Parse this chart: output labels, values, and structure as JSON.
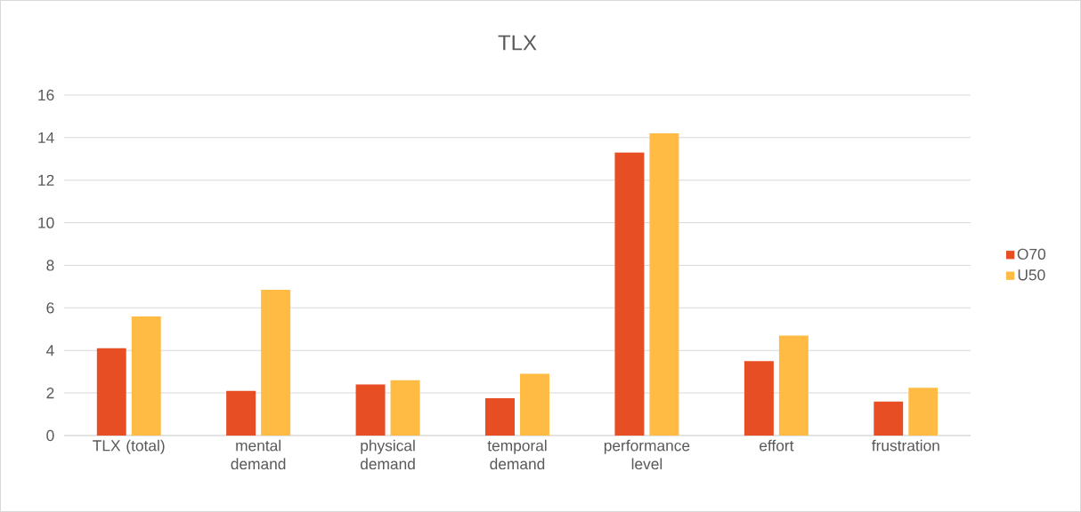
{
  "chart_data": {
    "type": "bar",
    "title": "TLX",
    "categories": [
      "TLX (total)",
      "mental demand",
      "physical demand",
      "temporal demand",
      "performance level",
      "effort",
      "frustration"
    ],
    "series": [
      {
        "name": "O70",
        "color": "#e84e24",
        "values": [
          4.1,
          2.1,
          2.4,
          1.75,
          13.3,
          3.5,
          1.6
        ]
      },
      {
        "name": "U50",
        "color": "#ffbb44",
        "values": [
          5.6,
          6.85,
          2.6,
          2.9,
          14.2,
          4.7,
          2.25
        ]
      }
    ],
    "ylim": [
      0,
      16
    ],
    "yticks": [
      0,
      2,
      4,
      6,
      8,
      10,
      12,
      14,
      16
    ],
    "grid": "y",
    "legend": "right"
  }
}
